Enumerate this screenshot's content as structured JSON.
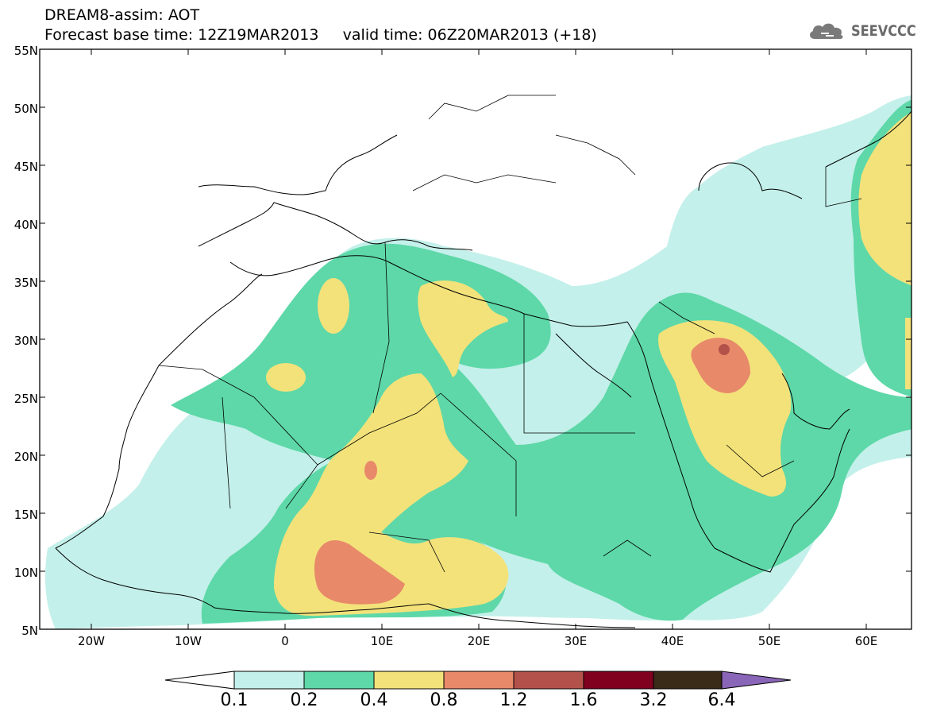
{
  "header": {
    "title_line1": "DREAM8-assim: AOT",
    "title_line2": "Forecast base time: 12Z19MAR2013     valid time: 06Z20MAR2013 (+18)"
  },
  "logo": {
    "icon": "cloud-logo-icon",
    "text": "SEEVCCC"
  },
  "axes": {
    "lat_labels": [
      "55N",
      "50N",
      "45N",
      "40N",
      "35N",
      "30N",
      "25N",
      "20N",
      "15N",
      "10N",
      "5N"
    ],
    "lon_labels": [
      "20W",
      "10W",
      "0",
      "10E",
      "20E",
      "30E",
      "40E",
      "50E",
      "60E"
    ]
  },
  "colorbar": {
    "labels": [
      "0.1",
      "0.2",
      "0.4",
      "0.8",
      "1.2",
      "1.6",
      "3.2",
      "6.4"
    ],
    "colors": [
      "#ffffff",
      "#c3f0ea",
      "#5ed8a8",
      "#f3e27a",
      "#e8896a",
      "#b3524a",
      "#800020",
      "#3a2a18",
      "#8a66b8"
    ]
  },
  "legend_colors": {
    "light_cyan": "#c3f0ea",
    "green": "#5ed8a8",
    "yellow": "#f3e27a",
    "salmon": "#e8896a",
    "brown_red": "#b3524a"
  }
}
